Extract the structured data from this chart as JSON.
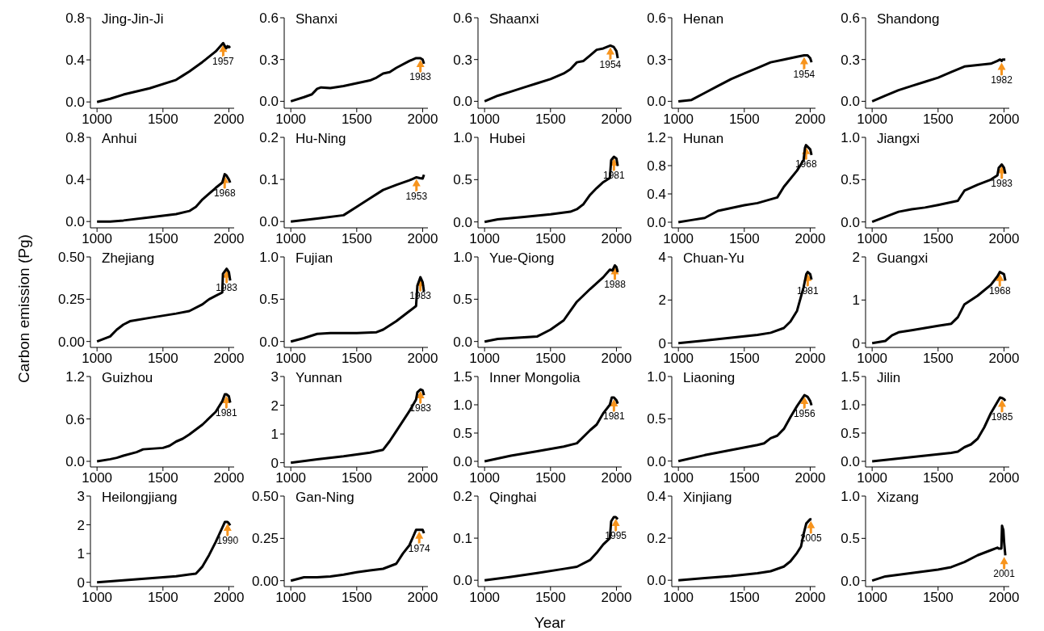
{
  "chart_data": [
    {
      "type": "line",
      "title": "Jing-Jin-Ji",
      "x": [
        1000,
        1100,
        1200,
        1400,
        1600,
        1650,
        1700,
        1800,
        1900,
        1950,
        1957,
        1970,
        1980,
        1990,
        2000,
        2010
      ],
      "series": [
        {
          "color": "#000000",
          "values": [
            0,
            0.03,
            0.07,
            0.13,
            0.21,
            0.25,
            0.29,
            0.38,
            0.48,
            0.55,
            0.56,
            0.53,
            0.51,
            0.53,
            0.52,
            0.53
          ]
        }
      ],
      "xlim": [
        950,
        2040
      ],
      "xticks": [
        1000,
        1500,
        2000
      ],
      "ylim": [
        -0.06,
        0.8
      ],
      "yticks": [
        {
          "value": 0,
          "label": "0.0"
        },
        0.4,
        0.8
      ],
      "annotations": [
        {
          "text": "1957",
          "x": 1957,
          "y": 0.56
        }
      ]
    },
    {
      "type": "line",
      "title": "Shanxi",
      "x": [
        1000,
        1100,
        1160,
        1200,
        1230,
        1300,
        1400,
        1500,
        1600,
        1650,
        1700,
        1750,
        1800,
        1900,
        1950,
        1983,
        2000,
        2010
      ],
      "series": [
        {
          "color": "#000000",
          "values": [
            0,
            0.03,
            0.05,
            0.09,
            0.1,
            0.095,
            0.11,
            0.13,
            0.15,
            0.17,
            0.2,
            0.21,
            0.24,
            0.29,
            0.31,
            0.31,
            0.3,
            0.27
          ]
        }
      ],
      "xlim": [
        950,
        2040
      ],
      "xticks": [
        1000,
        1500,
        2000
      ],
      "ylim": [
        -0.05,
        0.6
      ],
      "yticks": [
        {
          "value": 0,
          "label": "0.0"
        },
        0.3,
        0.6
      ],
      "annotations": [
        {
          "text": "1983",
          "x": 1983,
          "y": 0.31
        }
      ]
    },
    {
      "type": "line",
      "title": "Shaanxi",
      "x": [
        1000,
        1100,
        1200,
        1300,
        1400,
        1500,
        1600,
        1650,
        1700,
        1750,
        1800,
        1850,
        1900,
        1954,
        1980,
        2000,
        2010
      ],
      "series": [
        {
          "color": "#000000",
          "values": [
            0,
            0.04,
            0.07,
            0.1,
            0.13,
            0.16,
            0.2,
            0.23,
            0.28,
            0.29,
            0.33,
            0.37,
            0.38,
            0.4,
            0.39,
            0.36,
            0.31
          ]
        }
      ],
      "xlim": [
        950,
        2040
      ],
      "xticks": [
        1000,
        1500,
        2000
      ],
      "ylim": [
        -0.05,
        0.6
      ],
      "yticks": [
        {
          "value": 0,
          "label": "0.0"
        },
        0.3,
        0.6
      ],
      "annotations": [
        {
          "text": "1954",
          "x": 1954,
          "y": 0.4
        }
      ]
    },
    {
      "type": "line",
      "title": "Henan",
      "x": [
        1000,
        1100,
        1200,
        1300,
        1400,
        1500,
        1600,
        1700,
        1800,
        1900,
        1954,
        1980,
        2000,
        2010
      ],
      "series": [
        {
          "color": "#000000",
          "values": [
            0,
            0.01,
            0.06,
            0.11,
            0.16,
            0.2,
            0.24,
            0.28,
            0.3,
            0.32,
            0.33,
            0.33,
            0.31,
            0.28
          ]
        }
      ],
      "xlim": [
        950,
        2040
      ],
      "xticks": [
        1000,
        1500,
        2000
      ],
      "ylim": [
        -0.05,
        0.6
      ],
      "yticks": [
        {
          "value": 0,
          "label": "0.0"
        },
        0.3,
        0.6
      ],
      "annotations": [
        {
          "text": "1954",
          "x": 1954,
          "y": 0.33
        }
      ]
    },
    {
      "type": "line",
      "title": "Shandong",
      "x": [
        1000,
        1100,
        1200,
        1300,
        1400,
        1500,
        1600,
        1700,
        1800,
        1900,
        1950,
        1970,
        1982,
        1990,
        2010
      ],
      "series": [
        {
          "color": "#000000",
          "values": [
            0,
            0.04,
            0.08,
            0.11,
            0.14,
            0.17,
            0.21,
            0.25,
            0.26,
            0.27,
            0.29,
            0.3,
            0.29,
            0.3,
            0.3
          ]
        }
      ],
      "xlim": [
        950,
        2040
      ],
      "xticks": [
        1000,
        1500,
        2000
      ],
      "ylim": [
        -0.05,
        0.6
      ],
      "yticks": [
        {
          "value": 0,
          "label": "0.0"
        },
        0.3,
        0.6
      ],
      "annotations": [
        {
          "text": "1982",
          "x": 1982,
          "y": 0.29
        }
      ]
    },
    {
      "type": "line",
      "title": "Anhui",
      "x": [
        1000,
        1100,
        1200,
        1400,
        1600,
        1700,
        1750,
        1800,
        1900,
        1950,
        1968,
        1980,
        2000,
        2010
      ],
      "series": [
        {
          "color": "#000000",
          "values": [
            0,
            0,
            0.01,
            0.04,
            0.07,
            0.1,
            0.14,
            0.21,
            0.32,
            0.37,
            0.45,
            0.44,
            0.4,
            0.37
          ]
        }
      ],
      "xlim": [
        950,
        2040
      ],
      "xticks": [
        1000,
        1500,
        2000
      ],
      "ylim": [
        -0.06,
        0.8
      ],
      "yticks": [
        {
          "value": 0,
          "label": "0.0"
        },
        0.4,
        0.8
      ],
      "annotations": [
        {
          "text": "1968",
          "x": 1968,
          "y": 0.45
        }
      ]
    },
    {
      "type": "line",
      "title": "Hu-Ning",
      "x": [
        1000,
        1200,
        1400,
        1500,
        1600,
        1700,
        1800,
        1900,
        1953,
        1980,
        2000,
        2010
      ],
      "series": [
        {
          "color": "#000000",
          "values": [
            0,
            0.007,
            0.015,
            0.035,
            0.055,
            0.075,
            0.087,
            0.098,
            0.105,
            0.103,
            0.102,
            0.111
          ]
        }
      ],
      "xlim": [
        950,
        2040
      ],
      "xticks": [
        1000,
        1500,
        2000
      ],
      "ylim": [
        -0.015,
        0.2
      ],
      "yticks": [
        {
          "value": 0,
          "label": "0.0"
        },
        0.1,
        0.2
      ],
      "annotations": [
        {
          "text": "1953",
          "x": 1953,
          "y": 0.105
        }
      ]
    },
    {
      "type": "line",
      "title": "Hubei",
      "x": [
        1000,
        1100,
        1300,
        1500,
        1650,
        1700,
        1750,
        1800,
        1850,
        1900,
        1950,
        1960,
        1981,
        2000,
        2010
      ],
      "series": [
        {
          "color": "#000000",
          "values": [
            0,
            0.03,
            0.06,
            0.09,
            0.12,
            0.15,
            0.21,
            0.32,
            0.4,
            0.47,
            0.52,
            0.73,
            0.77,
            0.75,
            0.66
          ]
        }
      ],
      "xlim": [
        950,
        2040
      ],
      "xticks": [
        1000,
        1500,
        2000
      ],
      "ylim": [
        -0.07,
        1
      ],
      "yticks": [
        {
          "value": 0,
          "label": "0.0"
        },
        0.5,
        {
          "value": 1,
          "label": "1.0"
        }
      ],
      "annotations": [
        {
          "text": "1981",
          "x": 1981,
          "y": 0.77
        }
      ]
    },
    {
      "type": "line",
      "title": "Hunan",
      "x": [
        1000,
        1100,
        1200,
        1300,
        1400,
        1500,
        1600,
        1750,
        1800,
        1900,
        1950,
        1960,
        1968,
        2000,
        2010
      ],
      "series": [
        {
          "color": "#000000",
          "values": [
            0,
            0.03,
            0.06,
            0.16,
            0.2,
            0.24,
            0.27,
            0.35,
            0.5,
            0.73,
            0.88,
            1.05,
            1.09,
            1.03,
            0.95
          ]
        }
      ],
      "xlim": [
        950,
        2040
      ],
      "xticks": [
        1000,
        1500,
        2000
      ],
      "ylim": [
        -0.08,
        1.2
      ],
      "yticks": [
        {
          "value": 0,
          "label": "0.0"
        },
        0.4,
        0.8,
        1.2
      ],
      "annotations": [
        {
          "text": "1968",
          "x": 1968,
          "y": 1.09
        }
      ]
    },
    {
      "type": "line",
      "title": "Jiangxi",
      "x": [
        1000,
        1100,
        1200,
        1300,
        1400,
        1500,
        1650,
        1700,
        1800,
        1900,
        1950,
        1960,
        1983,
        2000,
        2010
      ],
      "series": [
        {
          "color": "#000000",
          "values": [
            0,
            0.06,
            0.12,
            0.15,
            0.17,
            0.2,
            0.25,
            0.37,
            0.44,
            0.5,
            0.55,
            0.64,
            0.68,
            0.64,
            0.57
          ]
        }
      ],
      "xlim": [
        950,
        2040
      ],
      "xticks": [
        1000,
        1500,
        2000
      ],
      "ylim": [
        -0.07,
        1
      ],
      "yticks": [
        {
          "value": 0,
          "label": "0.0"
        },
        0.5,
        {
          "value": 1,
          "label": "1.0"
        }
      ],
      "annotations": [
        {
          "text": "1983",
          "x": 1983,
          "y": 0.68
        }
      ]
    },
    {
      "type": "line",
      "title": "Zhejiang",
      "ylabel": "Carbon emission (Pg)",
      "x": [
        1000,
        1100,
        1150,
        1200,
        1250,
        1400,
        1600,
        1700,
        1800,
        1850,
        1900,
        1950,
        1955,
        1983,
        2000,
        2010
      ],
      "series": [
        {
          "color": "#000000",
          "values": [
            0,
            0.03,
            0.07,
            0.1,
            0.12,
            0.14,
            0.165,
            0.18,
            0.22,
            0.25,
            0.27,
            0.29,
            0.4,
            0.43,
            0.41,
            0.36
          ]
        }
      ],
      "xlim": [
        950,
        2040
      ],
      "xticks": [
        1000,
        1500,
        2000
      ],
      "ylim": [
        -0.035,
        0.5
      ],
      "yticks": [
        {
          "value": 0,
          "label": "0.00"
        },
        0.25,
        {
          "value": 0.5,
          "label": "0.50"
        }
      ],
      "annotations": [
        {
          "text": "1983",
          "x": 1983,
          "y": 0.43
        }
      ]
    },
    {
      "type": "line",
      "title": "Fujian",
      "x": [
        1000,
        1100,
        1200,
        1300,
        1500,
        1650,
        1700,
        1800,
        1900,
        1950,
        1960,
        1983,
        2000,
        2010
      ],
      "series": [
        {
          "color": "#000000",
          "values": [
            0,
            0.04,
            0.09,
            0.1,
            0.1,
            0.11,
            0.14,
            0.24,
            0.36,
            0.42,
            0.66,
            0.76,
            0.7,
            0.59
          ]
        }
      ],
      "xlim": [
        950,
        2040
      ],
      "xticks": [
        1000,
        1500,
        2000
      ],
      "ylim": [
        -0.07,
        1
      ],
      "yticks": [
        {
          "value": 0,
          "label": "0.0"
        },
        0.5,
        {
          "value": 1,
          "label": "1.0"
        }
      ],
      "annotations": [
        {
          "text": "1983",
          "x": 1983,
          "y": 0.76
        }
      ]
    },
    {
      "type": "line",
      "title": "Yue-Qiong",
      "x": [
        1000,
        1100,
        1200,
        1400,
        1500,
        1600,
        1650,
        1700,
        1800,
        1900,
        1950,
        1970,
        1988,
        2000,
        2010
      ],
      "series": [
        {
          "color": "#000000",
          "values": [
            0,
            0.03,
            0.04,
            0.06,
            0.14,
            0.25,
            0.36,
            0.47,
            0.62,
            0.76,
            0.85,
            0.84,
            0.9,
            0.88,
            0.82
          ]
        }
      ],
      "xlim": [
        950,
        2040
      ],
      "xticks": [
        1000,
        1500,
        2000
      ],
      "ylim": [
        -0.07,
        1
      ],
      "yticks": [
        {
          "value": 0,
          "label": "0.0"
        },
        0.5,
        {
          "value": 1,
          "label": "1.0"
        }
      ],
      "annotations": [
        {
          "text": "1988",
          "x": 1988,
          "y": 0.9
        }
      ]
    },
    {
      "type": "line",
      "title": "Chuan-Yu",
      "x": [
        1000,
        1200,
        1400,
        1600,
        1700,
        1800,
        1850,
        1900,
        1950,
        1970,
        1981,
        2000,
        2010
      ],
      "series": [
        {
          "color": "#000000",
          "values": [
            0,
            0.12,
            0.25,
            0.38,
            0.48,
            0.7,
            1,
            1.5,
            2.6,
            3.2,
            3.3,
            3.2,
            2.95
          ]
        }
      ],
      "xlim": [
        950,
        2040
      ],
      "xticks": [
        1000,
        1500,
        2000
      ],
      "ylim": [
        -0.2,
        4
      ],
      "yticks": [
        0,
        2,
        4
      ],
      "annotations": [
        {
          "text": "1981",
          "x": 1981,
          "y": 3.3
        }
      ]
    },
    {
      "type": "line",
      "title": "Guangxi",
      "x": [
        1000,
        1100,
        1150,
        1200,
        1300,
        1500,
        1600,
        1650,
        1700,
        1800,
        1900,
        1950,
        1968,
        2000,
        2010
      ],
      "series": [
        {
          "color": "#000000",
          "values": [
            0,
            0.05,
            0.18,
            0.25,
            0.3,
            0.4,
            0.45,
            0.6,
            0.9,
            1.1,
            1.35,
            1.55,
            1.65,
            1.6,
            1.45
          ]
        }
      ],
      "xlim": [
        950,
        2040
      ],
      "xticks": [
        1000,
        1500,
        2000
      ],
      "ylim": [
        -0.1,
        2
      ],
      "yticks": [
        0,
        1,
        2
      ],
      "annotations": [
        {
          "text": "1968",
          "x": 1968,
          "y": 1.65
        }
      ]
    },
    {
      "type": "line",
      "title": "Guizhou",
      "x": [
        1000,
        1100,
        1150,
        1200,
        1300,
        1350,
        1500,
        1550,
        1600,
        1650,
        1700,
        1800,
        1900,
        1950,
        1970,
        1981,
        2000,
        2010
      ],
      "series": [
        {
          "color": "#000000",
          "values": [
            0,
            0.03,
            0.05,
            0.08,
            0.13,
            0.17,
            0.19,
            0.22,
            0.28,
            0.32,
            0.38,
            0.52,
            0.7,
            0.85,
            0.95,
            0.95,
            0.92,
            0.83
          ]
        }
      ],
      "xlim": [
        950,
        2040
      ],
      "xticks": [
        1000,
        1500,
        2000
      ],
      "ylim": [
        -0.08,
        1.2
      ],
      "yticks": [
        {
          "value": 0,
          "label": "0.0"
        },
        0.6,
        1.2
      ],
      "annotations": [
        {
          "text": "1981",
          "x": 1981,
          "y": 0.95
        }
      ]
    },
    {
      "type": "line",
      "title": "Yunnan",
      "x": [
        1000,
        1200,
        1400,
        1600,
        1700,
        1750,
        1800,
        1900,
        1950,
        1960,
        1983,
        2000,
        2010
      ],
      "series": [
        {
          "color": "#000000",
          "values": [
            0,
            0.12,
            0.22,
            0.35,
            0.45,
            0.75,
            1.1,
            1.8,
            2.2,
            2.45,
            2.55,
            2.52,
            2.35
          ]
        }
      ],
      "xlim": [
        950,
        2040
      ],
      "xticks": [
        1000,
        1500,
        2000
      ],
      "ylim": [
        -0.15,
        3
      ],
      "yticks": [
        0,
        1,
        2,
        3
      ],
      "annotations": [
        {
          "text": "1983",
          "x": 1983,
          "y": 2.55
        }
      ]
    },
    {
      "type": "line",
      "title": "Inner Mongolia",
      "x": [
        1000,
        1200,
        1400,
        1600,
        1700,
        1800,
        1850,
        1900,
        1950,
        1965,
        1981,
        2000,
        2010
      ],
      "series": [
        {
          "color": "#000000",
          "values": [
            0,
            0.1,
            0.18,
            0.26,
            0.32,
            0.55,
            0.65,
            0.85,
            1,
            1.13,
            1.13,
            1.08,
            1.02
          ]
        }
      ],
      "xlim": [
        950,
        2040
      ],
      "xticks": [
        1000,
        1500,
        2000
      ],
      "ylim": [
        -0.1,
        1.5
      ],
      "yticks": [
        {
          "value": 0,
          "label": "0.0"
        },
        0.5,
        {
          "value": 1,
          "label": "1.0"
        },
        1.5
      ],
      "annotations": [
        {
          "text": "1981",
          "x": 1981,
          "y": 1.13
        }
      ]
    },
    {
      "type": "line",
      "title": "Liaoning",
      "x": [
        1000,
        1200,
        1400,
        1600,
        1650,
        1700,
        1750,
        1800,
        1850,
        1900,
        1956,
        1980,
        2000,
        2010
      ],
      "series": [
        {
          "color": "#000000",
          "values": [
            0,
            0.07,
            0.13,
            0.19,
            0.21,
            0.27,
            0.3,
            0.38,
            0.52,
            0.65,
            0.78,
            0.76,
            0.71,
            0.66
          ]
        }
      ],
      "xlim": [
        950,
        2040
      ],
      "xticks": [
        1000,
        1500,
        2000
      ],
      "ylim": [
        -0.07,
        1
      ],
      "yticks": [
        {
          "value": 0,
          "label": "0.0"
        },
        0.5,
        {
          "value": 1,
          "label": "1.0"
        }
      ],
      "annotations": [
        {
          "text": "1956",
          "x": 1956,
          "y": 0.78
        }
      ]
    },
    {
      "type": "line",
      "title": "Jilin",
      "x": [
        1000,
        1200,
        1400,
        1600,
        1650,
        1700,
        1750,
        1800,
        1850,
        1900,
        1950,
        1970,
        1985,
        2000,
        2010
      ],
      "series": [
        {
          "color": "#000000",
          "values": [
            0,
            0.05,
            0.1,
            0.15,
            0.17,
            0.25,
            0.3,
            0.4,
            0.6,
            0.85,
            1.05,
            1.13,
            1.12,
            1.1,
            1.07
          ]
        }
      ],
      "xlim": [
        950,
        2040
      ],
      "xticks": [
        1000,
        1500,
        2000
      ],
      "ylim": [
        -0.1,
        1.5
      ],
      "yticks": [
        {
          "value": 0,
          "label": "0.0"
        },
        0.5,
        {
          "value": 1,
          "label": "1.0"
        },
        1.5
      ],
      "annotations": [
        {
          "text": "1985",
          "x": 1985,
          "y": 1.12
        }
      ]
    },
    {
      "type": "line",
      "title": "Heilongjiang",
      "x": [
        1000,
        1200,
        1400,
        1600,
        1700,
        1750,
        1800,
        1850,
        1900,
        1950,
        1970,
        1990,
        2000,
        2010
      ],
      "series": [
        {
          "color": "#000000",
          "values": [
            0,
            0.07,
            0.14,
            0.21,
            0.27,
            0.3,
            0.55,
            0.95,
            1.4,
            1.9,
            2.1,
            2.1,
            2.05,
            1.98
          ]
        }
      ],
      "xlim": [
        950,
        2040
      ],
      "xticks": [
        1000,
        1500,
        2000
      ],
      "ylim": [
        -0.15,
        3
      ],
      "yticks": [
        0,
        1,
        2,
        3
      ],
      "annotations": [
        {
          "text": "1990",
          "x": 1990,
          "y": 2.1
        }
      ]
    },
    {
      "type": "line",
      "title": "Gan-Ning",
      "x": [
        1000,
        1100,
        1200,
        1300,
        1400,
        1500,
        1600,
        1700,
        1800,
        1850,
        1900,
        1950,
        1974,
        2000,
        2010
      ],
      "series": [
        {
          "color": "#000000",
          "values": [
            0,
            0.02,
            0.02,
            0.025,
            0.035,
            0.05,
            0.06,
            0.07,
            0.1,
            0.16,
            0.21,
            0.3,
            0.3,
            0.3,
            0.28
          ]
        }
      ],
      "xlim": [
        950,
        2040
      ],
      "xticks": [
        1000,
        1500,
        2000
      ],
      "ylim": [
        -0.035,
        0.5
      ],
      "yticks": [
        {
          "value": 0,
          "label": "0.00"
        },
        0.25,
        {
          "value": 0.5,
          "label": "0.50"
        }
      ],
      "annotations": [
        {
          "text": "1974",
          "x": 1974,
          "y": 0.3
        }
      ]
    },
    {
      "type": "line",
      "title": "Qinghai",
      "xlabel": "Year",
      "x": [
        1000,
        1200,
        1400,
        1600,
        1700,
        1800,
        1850,
        1900,
        1950,
        1960,
        1980,
        1995,
        2010
      ],
      "series": [
        {
          "color": "#000000",
          "values": [
            0,
            0.008,
            0.017,
            0.027,
            0.032,
            0.048,
            0.065,
            0.085,
            0.1,
            0.14,
            0.15,
            0.15,
            0.145
          ]
        }
      ],
      "xlim": [
        950,
        2040
      ],
      "xticks": [
        1000,
        1500,
        2000
      ],
      "ylim": [
        -0.015,
        0.2
      ],
      "yticks": [
        {
          "value": 0,
          "label": "0.0"
        },
        0.1,
        0.2
      ],
      "annotations": [
        {
          "text": "1995",
          "x": 1995,
          "y": 0.15
        }
      ]
    },
    {
      "type": "line",
      "title": "Xinjiang",
      "x": [
        1000,
        1200,
        1400,
        1600,
        1700,
        1800,
        1850,
        1900,
        1930,
        1950,
        1970,
        2000,
        2005,
        2010
      ],
      "series": [
        {
          "color": "#000000",
          "values": [
            0,
            0.01,
            0.02,
            0.033,
            0.043,
            0.065,
            0.09,
            0.13,
            0.16,
            0.22,
            0.27,
            0.29,
            0.29,
            0.29
          ]
        }
      ],
      "xlim": [
        950,
        2040
      ],
      "xticks": [
        1000,
        1500,
        2000
      ],
      "ylim": [
        -0.03,
        0.4
      ],
      "yticks": [
        {
          "value": 0,
          "label": "0.0"
        },
        0.2,
        0.4
      ],
      "annotations": [
        {
          "text": "2005",
          "x": 2005,
          "y": 0.29
        }
      ]
    },
    {
      "type": "line",
      "title": "Xizang",
      "x": [
        1000,
        1100,
        1300,
        1500,
        1600,
        1700,
        1800,
        1900,
        1950,
        1960,
        1980,
        1985,
        1995,
        2001,
        2010
      ],
      "series": [
        {
          "color": "#000000",
          "values": [
            0,
            0.05,
            0.09,
            0.13,
            0.16,
            0.22,
            0.3,
            0.36,
            0.39,
            0.38,
            0.38,
            0.65,
            0.6,
            0.45,
            0.3
          ]
        }
      ],
      "xlim": [
        950,
        2040
      ],
      "xticks": [
        1000,
        1500,
        2000
      ],
      "ylim": [
        -0.07,
        1
      ],
      "yticks": [
        {
          "value": 0,
          "label": "0.0"
        },
        0.5,
        {
          "value": 1,
          "label": "1.0"
        }
      ],
      "annotations": [
        {
          "text": "2001",
          "x": 2001,
          "y": 0.3
        }
      ]
    }
  ]
}
